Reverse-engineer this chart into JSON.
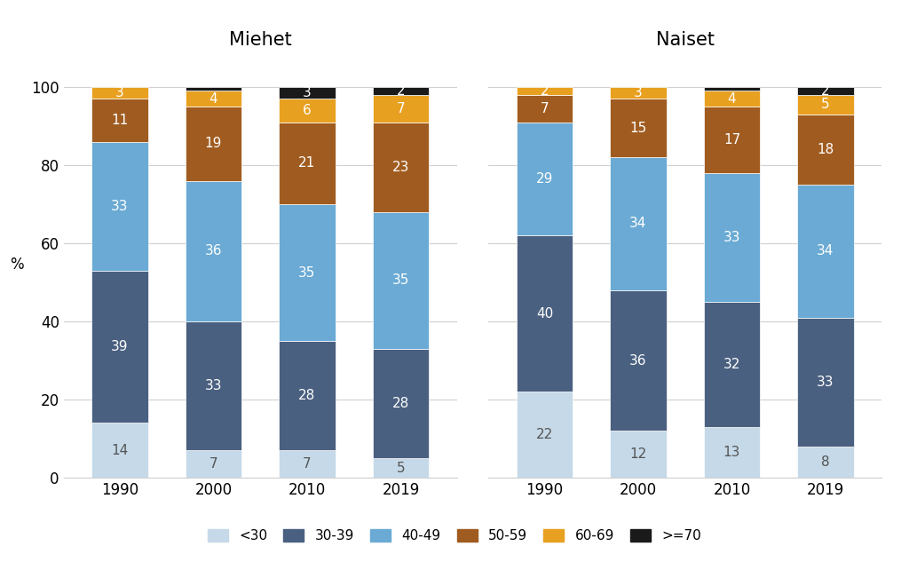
{
  "groups": [
    "Miehet",
    "Naiset"
  ],
  "years": [
    "1990",
    "2000",
    "2010",
    "2019"
  ],
  "categories": [
    "<30",
    "30-39",
    "40-49",
    "50-59",
    "60-69",
    ">=70"
  ],
  "colors": [
    "#c5d9e8",
    "#4a6080",
    "#6aaad4",
    "#a05c20",
    "#e8a020",
    "#1a1a1a"
  ],
  "miehet": {
    "1990": [
      14,
      39,
      33,
      11,
      3,
      0
    ],
    "2000": [
      7,
      33,
      36,
      19,
      4,
      1
    ],
    "2010": [
      7,
      28,
      35,
      21,
      6,
      3
    ],
    "2019": [
      5,
      28,
      35,
      23,
      7,
      2
    ]
  },
  "naiset": {
    "1990": [
      22,
      40,
      29,
      7,
      2,
      0
    ],
    "2000": [
      12,
      36,
      34,
      15,
      3,
      0
    ],
    "2010": [
      13,
      32,
      33,
      17,
      4,
      1
    ],
    "2019": [
      8,
      33,
      34,
      18,
      5,
      2
    ]
  },
  "ylabel": "%",
  "ylim": [
    0,
    105
  ],
  "yticks": [
    0,
    20,
    40,
    60,
    80,
    100
  ],
  "background_color": "#ffffff",
  "group_title_fontsize": 15,
  "label_fontsize": 11,
  "legend_fontsize": 11,
  "tick_fontsize": 12,
  "bar_width": 0.6
}
